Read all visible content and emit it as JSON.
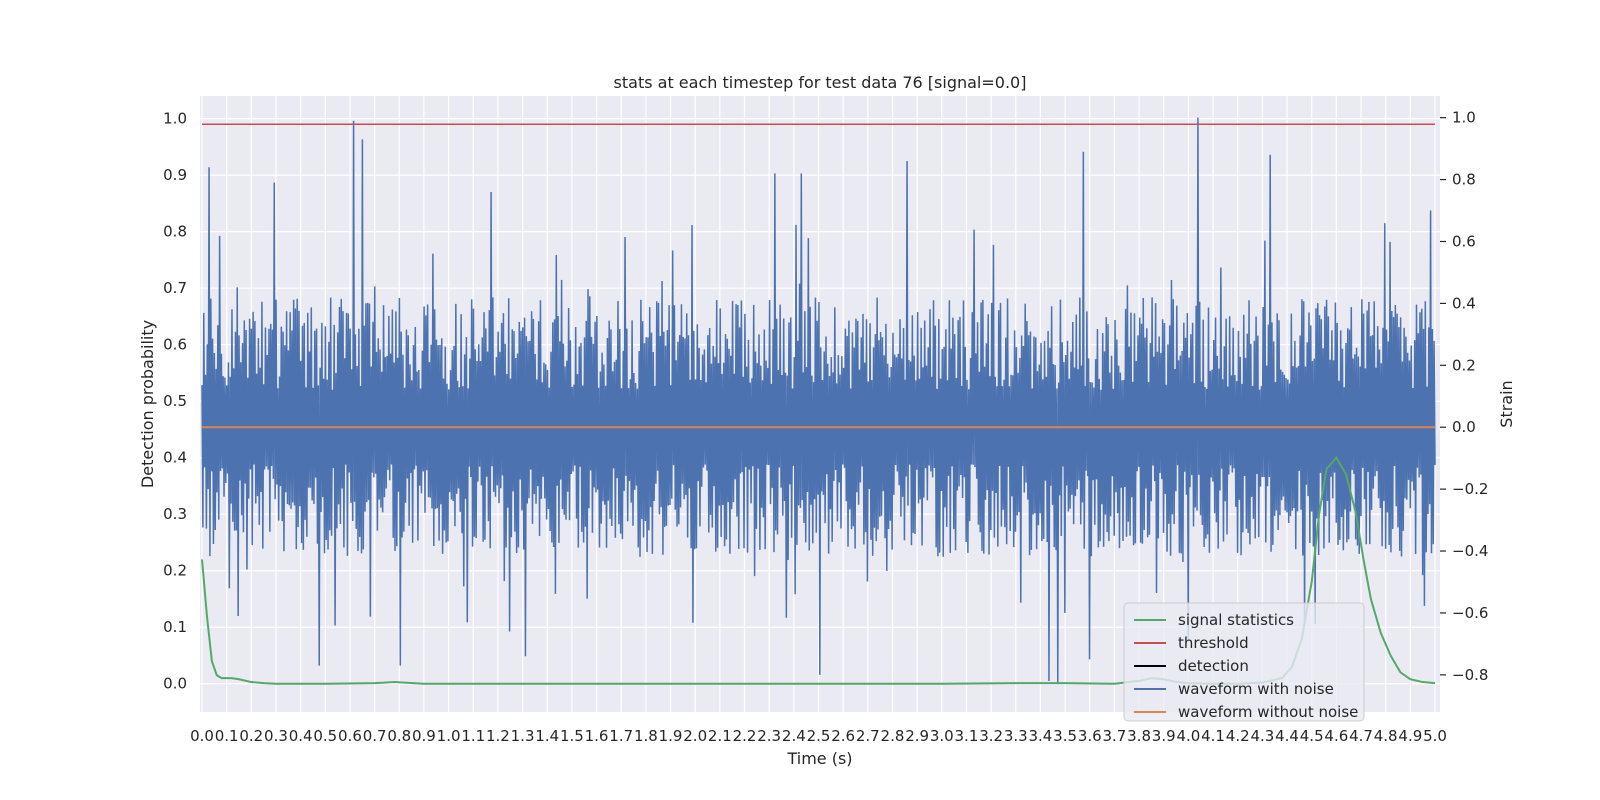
{
  "chart_data": {
    "type": "line",
    "title": "stats at each timestep for test data 76 [signal=0.0]",
    "xlabel": "Time (s)",
    "ylabel_left": "Detection probability",
    "ylabel_right": "Strain",
    "xlim": [
      0.0,
      5.0
    ],
    "ylim_left": [
      -0.05,
      1.04
    ],
    "ylim_right": [
      -0.92,
      1.07
    ],
    "x_ticks": [
      "0.0",
      "0.1",
      "0.2",
      "0.3",
      "0.4",
      "0.5",
      "0.6",
      "0.7",
      "0.8",
      "0.9",
      "1.0",
      "1.1",
      "1.2",
      "1.3",
      "1.4",
      "1.5",
      "1.6",
      "1.7",
      "1.8",
      "1.9",
      "2.0",
      "2.1",
      "2.2",
      "2.3",
      "2.4",
      "2.5",
      "2.6",
      "2.7",
      "2.8",
      "2.9",
      "3.0",
      "3.1",
      "3.2",
      "3.3",
      "3.4",
      "3.5",
      "3.6",
      "3.7",
      "3.8",
      "3.9",
      "4.0",
      "4.1",
      "4.2",
      "4.3",
      "4.4",
      "4.5",
      "4.6",
      "4.7",
      "4.8",
      "4.9",
      "5.0"
    ],
    "y_left_ticks": [
      "0.0",
      "0.1",
      "0.2",
      "0.3",
      "0.4",
      "0.5",
      "0.6",
      "0.7",
      "0.8",
      "0.9",
      "1.0"
    ],
    "y_right_ticks": [
      "−0.8",
      "−0.6",
      "−0.4",
      "−0.2",
      "0.0",
      "0.2",
      "0.4",
      "0.6",
      "0.8",
      "1.0"
    ],
    "grid": true,
    "legend_position": "bottom-right",
    "series": [
      {
        "name": "signal statistics",
        "axis": "left",
        "color": "#55a868",
        "x": [
          0.0,
          0.02,
          0.04,
          0.06,
          0.08,
          0.1,
          0.12,
          0.15,
          0.2,
          0.25,
          0.3,
          0.5,
          0.7,
          0.78,
          0.82,
          0.9,
          1.5,
          2.5,
          3.0,
          3.3,
          3.5,
          3.7,
          3.8,
          3.85,
          3.9,
          3.95,
          4.0,
          4.1,
          4.2,
          4.3,
          4.38,
          4.42,
          4.46,
          4.5,
          4.53,
          4.56,
          4.6,
          4.64,
          4.68,
          4.71,
          4.74,
          4.78,
          4.82,
          4.86,
          4.9,
          4.95,
          5.0
        ],
        "y": [
          0.22,
          0.12,
          0.04,
          0.015,
          0.01,
          0.01,
          0.01,
          0.008,
          0.003,
          0.001,
          0.0,
          0.0,
          0.001,
          0.003,
          0.002,
          0.0,
          0.0,
          0.0,
          0.0,
          0.001,
          0.001,
          0.0,
          0.005,
          0.01,
          0.008,
          0.003,
          0.001,
          0.0,
          0.0,
          0.002,
          0.01,
          0.03,
          0.08,
          0.18,
          0.3,
          0.38,
          0.4,
          0.37,
          0.3,
          0.22,
          0.15,
          0.09,
          0.05,
          0.02,
          0.008,
          0.003,
          0.001
        ]
      },
      {
        "name": "threshold",
        "axis": "left",
        "color": "#c44e52",
        "x": [
          0.0,
          5.0
        ],
        "y": [
          0.99,
          0.99
        ]
      },
      {
        "name": "detection",
        "axis": "left",
        "color": "#000000",
        "x": [],
        "y": []
      },
      {
        "name": "waveform with noise",
        "axis": "right",
        "color": "#4c72b0",
        "x_range": [
          0.0,
          5.0
        ],
        "num_points": 1400,
        "typical_range": [
          -0.42,
          0.42
        ],
        "peaks": [
          [
            0.03,
            0.84
          ],
          [
            0.29,
            0.79
          ],
          [
            0.61,
            0.99
          ],
          [
            0.65,
            0.93
          ],
          [
            1.17,
            0.76
          ],
          [
            2.32,
            0.82
          ],
          [
            2.43,
            0.82
          ],
          [
            2.86,
            0.86
          ],
          [
            3.57,
            0.89
          ],
          [
            4.04,
            1.0
          ],
          [
            4.33,
            0.88
          ],
          [
            4.98,
            0.7
          ]
        ],
        "troughs": [
          [
            0.47,
            -0.77
          ],
          [
            0.8,
            -0.77
          ],
          [
            1.31,
            -0.74
          ],
          [
            2.5,
            -0.8
          ],
          [
            3.43,
            -0.82
          ],
          [
            3.47,
            -0.83
          ],
          [
            3.6,
            -0.75
          ],
          [
            4.0,
            -0.69
          ]
        ]
      },
      {
        "name": "waveform without noise",
        "axis": "right",
        "color": "#dd8452",
        "x": [
          0.0,
          5.0
        ],
        "y": [
          0.0,
          0.0
        ]
      }
    ],
    "legend_entries": [
      "signal statistics",
      "threshold",
      "detection",
      "waveform with noise",
      "waveform without noise"
    ]
  }
}
